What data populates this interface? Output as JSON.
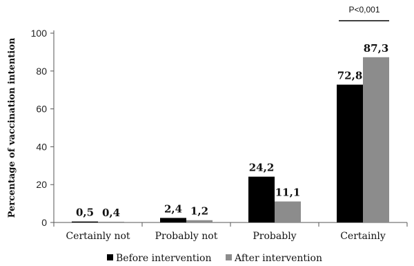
{
  "chart_data": {
    "type": "bar",
    "categories": [
      "Certainly not",
      "Probably not",
      "Probably",
      "Certainly"
    ],
    "series": [
      {
        "name": "Before intervention",
        "values": [
          0.5,
          2.4,
          24.2,
          72.8
        ],
        "labels": [
          "0,5",
          "2,4",
          "24,2",
          "72,8"
        ],
        "color": "#000000"
      },
      {
        "name": "After intervention",
        "values": [
          0.4,
          1.2,
          11.1,
          87.3
        ],
        "labels": [
          "0,4",
          "1,2",
          "11,1",
          "87,3"
        ],
        "color": "#8c8c8c"
      }
    ],
    "ylabel": "Percentage of vaccination intention",
    "ylim": [
      0,
      100
    ],
    "yticks": [
      0,
      20,
      40,
      60,
      80,
      100
    ],
    "grid": false,
    "legend": "bottom",
    "annotation": {
      "text": "P<0,001",
      "category": "Certainly"
    }
  }
}
